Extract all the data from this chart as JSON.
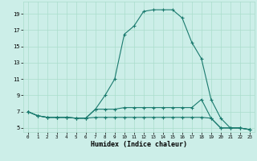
{
  "xlabel": "Humidex (Indice chaleur)",
  "bg_color": "#cceee8",
  "line_color": "#1a7a6e",
  "grid_color": "#aaddcc",
  "xlim": [
    -0.5,
    23.5
  ],
  "ylim": [
    4.5,
    20.5
  ],
  "xticks": [
    0,
    1,
    2,
    3,
    4,
    5,
    6,
    7,
    8,
    9,
    10,
    11,
    12,
    13,
    14,
    15,
    16,
    17,
    18,
    19,
    20,
    21,
    22,
    23
  ],
  "yticks": [
    5,
    7,
    9,
    11,
    13,
    15,
    17,
    19
  ],
  "line1_x": [
    0,
    1,
    2,
    3,
    4,
    5,
    6,
    7,
    8,
    9,
    10,
    11,
    12,
    13,
    14,
    15,
    16,
    17,
    18,
    19,
    20,
    21,
    22,
    23
  ],
  "line1_y": [
    7.0,
    6.5,
    6.3,
    6.3,
    6.3,
    6.2,
    6.2,
    6.3,
    6.3,
    6.3,
    6.3,
    6.3,
    6.3,
    6.3,
    6.3,
    6.3,
    6.3,
    6.3,
    6.3,
    6.2,
    5.0,
    5.0,
    5.0,
    4.8
  ],
  "line2_x": [
    0,
    1,
    2,
    3,
    4,
    5,
    6,
    7,
    8,
    9,
    10,
    11,
    12,
    13,
    14,
    15,
    16,
    17,
    18,
    19,
    20,
    21,
    22,
    23
  ],
  "line2_y": [
    7.0,
    6.5,
    6.3,
    6.3,
    6.3,
    6.2,
    6.2,
    7.3,
    9.0,
    11.0,
    16.5,
    17.5,
    19.3,
    19.5,
    19.5,
    19.5,
    18.5,
    15.5,
    13.5,
    8.5,
    6.2,
    5.0,
    5.0,
    4.8
  ],
  "line3_x": [
    0,
    1,
    2,
    3,
    4,
    5,
    6,
    7,
    8,
    9,
    10,
    11,
    12,
    13,
    14,
    15,
    16,
    17,
    18,
    19,
    20,
    21,
    22,
    23
  ],
  "line3_y": [
    7.0,
    6.5,
    6.3,
    6.3,
    6.3,
    6.2,
    6.2,
    7.3,
    7.3,
    7.3,
    7.5,
    7.5,
    7.5,
    7.5,
    7.5,
    7.5,
    7.5,
    7.5,
    8.5,
    6.2,
    5.0,
    5.0,
    5.0,
    4.8
  ]
}
